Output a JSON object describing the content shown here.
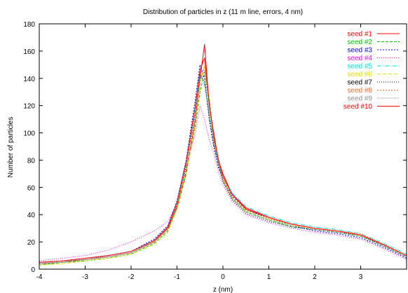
{
  "chart_data": {
    "type": "line",
    "title": "Distribution of particles in z (11 m line, errors, 4 nm)",
    "xlabel": "z (nm)",
    "ylabel": "Number of particles",
    "xlim": [
      -4,
      4
    ],
    "ylim": [
      0,
      180
    ],
    "xticks": [
      "-4",
      "-3",
      "-2",
      "-1",
      "0",
      "1",
      "2",
      "3"
    ],
    "yticks": [
      "0",
      "20",
      "40",
      "60",
      "80",
      "100",
      "120",
      "140",
      "160",
      "180"
    ],
    "grid": false,
    "legend_position": "top-right",
    "x": [
      -4.0,
      -3.5,
      -3.0,
      -2.5,
      -2.0,
      -1.5,
      -1.2,
      -1.0,
      -0.8,
      -0.6,
      -0.5,
      -0.4,
      -0.3,
      -0.2,
      -0.1,
      0.0,
      0.2,
      0.5,
      1.0,
      1.5,
      2.0,
      2.5,
      3.0,
      3.5,
      4.0
    ],
    "series": [
      {
        "name": "seed #1",
        "color": "#ff0000",
        "dash": "",
        "values": [
          4,
          5,
          7,
          9,
          12,
          20,
          30,
          45,
          70,
          110,
          140,
          165,
          120,
          100,
          80,
          70,
          55,
          45,
          38,
          33,
          30,
          28,
          25,
          18,
          10
        ]
      },
      {
        "name": "seed #2",
        "color": "#00c000",
        "dash": "4,2",
        "values": [
          3,
          5,
          6,
          8,
          11,
          19,
          28,
          46,
          72,
          105,
          130,
          145,
          125,
          95,
          78,
          65,
          52,
          42,
          36,
          31,
          29,
          27,
          24,
          17,
          9
        ]
      },
      {
        "name": "seed #3",
        "color": "#0000ff",
        "dash": "2,2",
        "values": [
          5,
          6,
          8,
          10,
          13,
          22,
          32,
          50,
          80,
          125,
          150,
          140,
          110,
          90,
          75,
          66,
          54,
          44,
          37,
          32,
          28,
          26,
          23,
          16,
          8
        ]
      },
      {
        "name": "seed #4",
        "color": "#ff00ff",
        "dash": "1,2",
        "values": [
          6,
          8,
          10,
          14,
          20,
          28,
          35,
          48,
          75,
          100,
          120,
          110,
          95,
          85,
          72,
          62,
          50,
          40,
          34,
          30,
          27,
          25,
          22,
          15,
          7
        ]
      },
      {
        "name": "seed #5",
        "color": "#00e0e0",
        "dash": "6,2,1,2",
        "values": [
          4,
          5,
          7,
          9,
          12,
          21,
          31,
          47,
          78,
          118,
          145,
          135,
          115,
          92,
          79,
          68,
          56,
          46,
          39,
          34,
          31,
          29,
          26,
          19,
          11
        ]
      },
      {
        "name": "seed #6",
        "color": "#e0e000",
        "dash": "5,3",
        "values": [
          3,
          4,
          6,
          8,
          11,
          18,
          27,
          44,
          70,
          108,
          135,
          150,
          118,
          96,
          80,
          67,
          53,
          43,
          37,
          32,
          30,
          28,
          25,
          18,
          10
        ]
      },
      {
        "name": "seed #7",
        "color": "#000000",
        "dash": "1,2",
        "values": [
          5,
          6,
          7,
          10,
          13,
          21,
          30,
          48,
          76,
          115,
          142,
          138,
          112,
          91,
          77,
          64,
          51,
          41,
          35,
          31,
          29,
          27,
          25,
          17,
          9
        ]
      },
      {
        "name": "seed #8",
        "color": "#ff6a2a",
        "dash": "2,2",
        "values": [
          4,
          5,
          7,
          9,
          12,
          20,
          29,
          46,
          74,
          112,
          138,
          148,
          120,
          97,
          79,
          66,
          53,
          43,
          37,
          33,
          30,
          28,
          26,
          18,
          10
        ]
      },
      {
        "name": "seed #9",
        "color": "#909090",
        "dash": "1,1",
        "values": [
          4,
          6,
          7,
          9,
          12,
          20,
          30,
          47,
          77,
          116,
          140,
          142,
          114,
          93,
          78,
          65,
          52,
          42,
          36,
          32,
          29,
          27,
          24,
          17,
          9
        ]
      },
      {
        "name": "seed #10",
        "color": "#ff0000",
        "dash": "",
        "values": [
          5,
          6,
          8,
          10,
          13,
          21,
          31,
          49,
          79,
          120,
          146,
          155,
          122,
          98,
          81,
          68,
          55,
          44,
          38,
          33,
          30,
          28,
          25,
          18,
          10
        ]
      }
    ]
  }
}
